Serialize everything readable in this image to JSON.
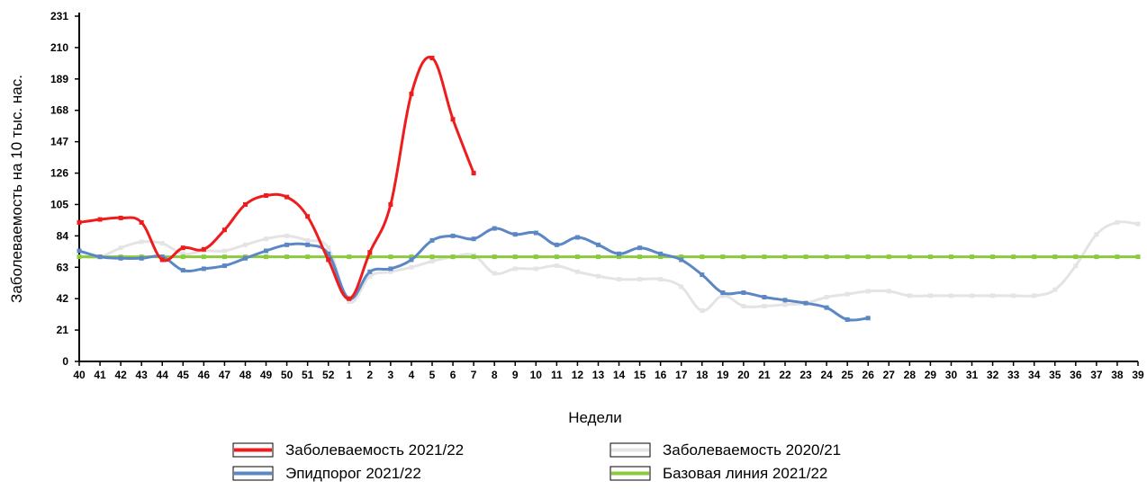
{
  "chart_data": {
    "type": "line",
    "title": "",
    "xlabel": "Недели",
    "ylabel": "Заболеваемость на 10 тыс. нас.",
    "ylim": [
      0,
      231
    ],
    "yticks": [
      0,
      21,
      42,
      63,
      84,
      105,
      126,
      147,
      168,
      189,
      210,
      231
    ],
    "categories": [
      "40",
      "41",
      "42",
      "43",
      "44",
      "45",
      "46",
      "47",
      "48",
      "49",
      "50",
      "51",
      "52",
      "1",
      "2",
      "3",
      "4",
      "5",
      "6",
      "7",
      "8",
      "9",
      "10",
      "11",
      "12",
      "13",
      "14",
      "15",
      "16",
      "17",
      "18",
      "19",
      "20",
      "21",
      "22",
      "23",
      "24",
      "25",
      "26",
      "27",
      "28",
      "29",
      "30",
      "31",
      "32",
      "33",
      "34",
      "35",
      "36",
      "37",
      "38",
      "39"
    ],
    "grid": false,
    "legend_position": "bottom",
    "series": [
      {
        "name": "Заболеваемость 2020/21",
        "color": "#e4e4e4",
        "values": [
          70,
          70,
          76,
          80,
          79,
          72,
          74,
          74,
          78,
          82,
          84,
          81,
          76,
          40,
          57,
          60,
          63,
          67,
          70,
          71,
          59,
          62,
          62,
          64,
          60,
          57,
          55,
          55,
          55,
          50,
          34,
          44,
          37,
          37,
          38,
          39,
          43,
          45,
          47,
          47,
          44,
          44,
          44,
          44,
          44,
          44,
          44,
          48,
          64,
          85,
          93,
          92
        ]
      },
      {
        "name": "Эпидпорог 2021/22",
        "color": "#5b87c5",
        "values": [
          74,
          70,
          69,
          69,
          70,
          61,
          62,
          64,
          69,
          74,
          78,
          78,
          72,
          42,
          60,
          62,
          68,
          81,
          84,
          82,
          89,
          85,
          86,
          78,
          83,
          78,
          72,
          76,
          72,
          68,
          58,
          46,
          46,
          43,
          41,
          39,
          36,
          28,
          29,
          null,
          null,
          null,
          null,
          null,
          null,
          null,
          null,
          null,
          null,
          null,
          null,
          null
        ]
      },
      {
        "name": "Заболеваемость 2021/22",
        "color": "#ee1c1c",
        "values": [
          93,
          95,
          96,
          93,
          68,
          76,
          75,
          88,
          105,
          111,
          110,
          97,
          68,
          42,
          73,
          105,
          179,
          203,
          162,
          126,
          null,
          null,
          null,
          null,
          null,
          null,
          null,
          null,
          null,
          null,
          null,
          null,
          null,
          null,
          null,
          null,
          null,
          null,
          null,
          null,
          null,
          null,
          null,
          null,
          null,
          null,
          null,
          null,
          null,
          null,
          null,
          null
        ]
      },
      {
        "name": "Базовая линия 2021/22",
        "color": "#8bca3c",
        "values": [
          70,
          70,
          70,
          70,
          70,
          70,
          70,
          70,
          70,
          70,
          70,
          70,
          70,
          70,
          70,
          70,
          70,
          70,
          70,
          70,
          70,
          70,
          70,
          70,
          70,
          70,
          70,
          70,
          70,
          70,
          70,
          70,
          70,
          70,
          70,
          70,
          70,
          70,
          70,
          70,
          70,
          70,
          70,
          70,
          70,
          70,
          70,
          70,
          70,
          70,
          70,
          70
        ]
      }
    ],
    "legend_order": [
      "Заболеваемость 2021/22",
      "Заболеваемость 2020/21",
      "Эпидпорог 2021/22",
      "Базовая линия 2021/22"
    ]
  }
}
